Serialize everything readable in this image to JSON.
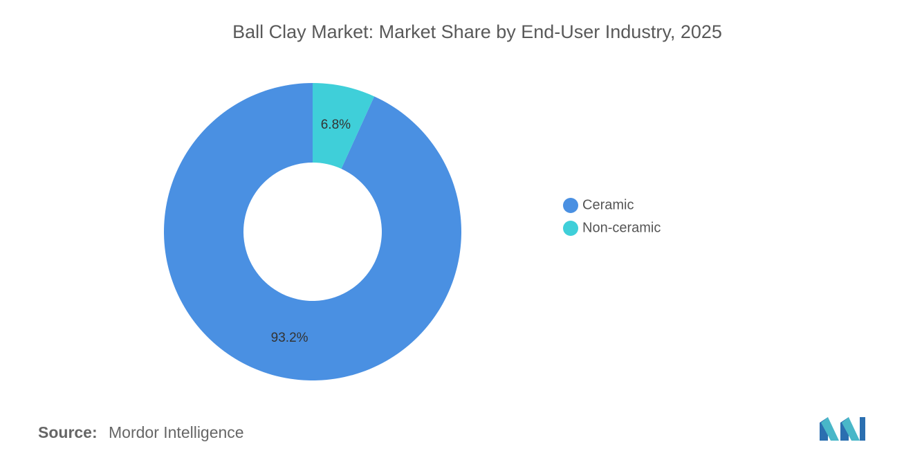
{
  "chart_data": {
    "type": "donut",
    "title": "Ball Clay Market: Market Share by End-User Industry, 2025",
    "categories": [
      "Ceramic",
      "Non-ceramic"
    ],
    "values": [
      93.2,
      6.8
    ],
    "value_labels": [
      "93.2%",
      "6.8%"
    ],
    "colors": [
      "#4a90e2",
      "#3fcfd9"
    ],
    "source_label": "Source:",
    "source": "Mordor Intelligence"
  }
}
